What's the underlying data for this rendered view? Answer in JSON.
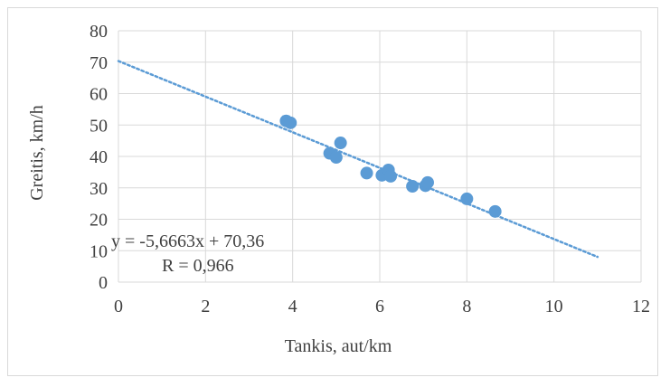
{
  "chart_data": {
    "type": "scatter",
    "title": "",
    "xlabel": "Tankis, aut/km",
    "ylabel": "Greitis, km/h",
    "xlim": [
      0,
      12
    ],
    "ylim": [
      0,
      80
    ],
    "x_ticks": [
      0,
      2,
      4,
      6,
      8,
      10,
      12
    ],
    "y_ticks": [
      0,
      10,
      20,
      30,
      40,
      50,
      60,
      70,
      80
    ],
    "grid": true,
    "legend": "none",
    "series": [
      {
        "color": "#5b9bd5",
        "points": [
          {
            "x": 3.85,
            "y": 51.3
          },
          {
            "x": 3.95,
            "y": 50.7
          },
          {
            "x": 4.85,
            "y": 41.0
          },
          {
            "x": 5.0,
            "y": 39.7
          },
          {
            "x": 5.1,
            "y": 44.3
          },
          {
            "x": 5.7,
            "y": 34.7
          },
          {
            "x": 6.05,
            "y": 34.0
          },
          {
            "x": 6.2,
            "y": 35.7
          },
          {
            "x": 6.25,
            "y": 33.7
          },
          {
            "x": 6.75,
            "y": 30.5
          },
          {
            "x": 7.05,
            "y": 30.7
          },
          {
            "x": 7.1,
            "y": 31.7
          },
          {
            "x": 8.0,
            "y": 26.5
          },
          {
            "x": 8.65,
            "y": 22.5
          }
        ]
      }
    ],
    "trendline": {
      "type": "linear",
      "style": "dotted",
      "color": "#5b9bd5",
      "slope": -5.6663,
      "intercept": 70.36,
      "x_range": [
        0,
        11
      ],
      "equation_label": "y = -5,6663x + 70,36",
      "r_label": "R = 0,966"
    }
  }
}
